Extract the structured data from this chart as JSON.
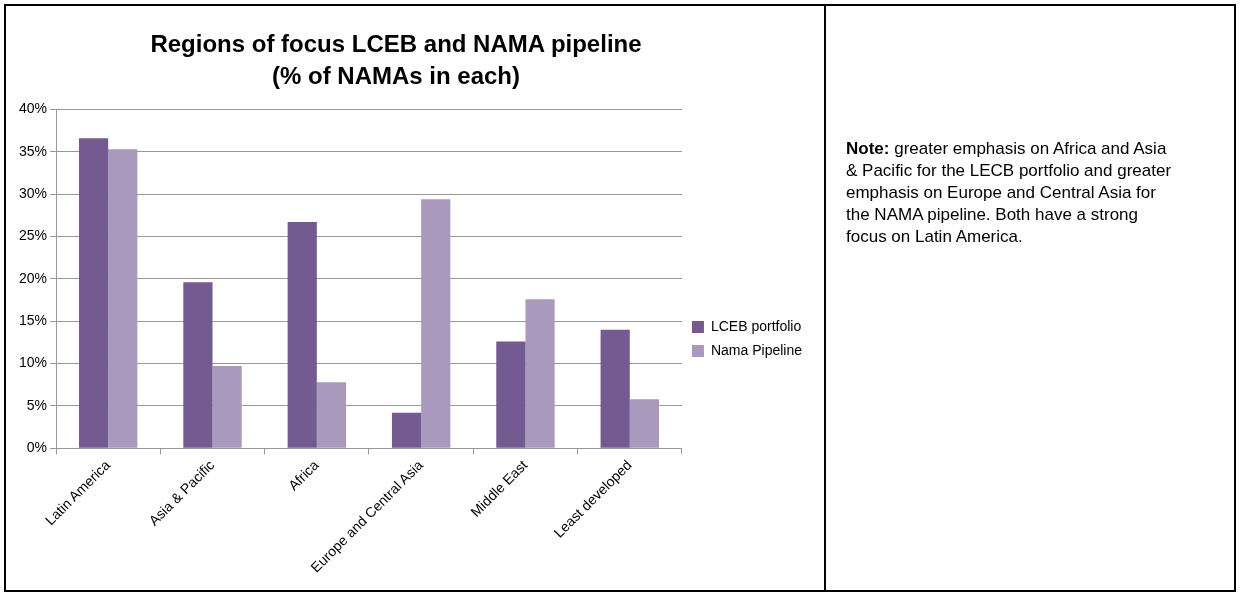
{
  "chart_data": {
    "type": "bar",
    "title": "Regions of focus LCEB and NAMA pipeline (% of NAMAs in each)",
    "categories": [
      "Latin America",
      "Asia & Pacific",
      "Africa",
      "Europe and Central Asia",
      "Middle East",
      "Least developed"
    ],
    "series": [
      {
        "name": "LCEB portfolio",
        "color": "#735a90",
        "values": [
          36.6,
          19.6,
          26.7,
          4.2,
          12.6,
          14.0
        ]
      },
      {
        "name": "Nama Pipeline",
        "color": "#a99abd",
        "values": [
          35.3,
          9.7,
          7.8,
          29.4,
          17.6,
          5.8
        ]
      }
    ],
    "ylim": [
      0,
      40
    ],
    "yticks": [
      {
        "value": 0,
        "label": "0%"
      },
      {
        "value": 5,
        "label": "5%"
      },
      {
        "value": 10,
        "label": "10%"
      },
      {
        "value": 15,
        "label": "15%"
      },
      {
        "value": 20,
        "label": "20%"
      },
      {
        "value": 25,
        "label": "25%"
      },
      {
        "value": 30,
        "label": "30%"
      },
      {
        "value": 35,
        "label": "35%"
      },
      {
        "value": 40,
        "label": "40%"
      }
    ],
    "grid": "y",
    "legend": "right",
    "annotations": [
      "Note: greater emphasis on Africa and Asia & Pacific for the LECB portfolio and greater emphasis on Europe and Central Asia for the NAMA pipeline. Both have a strong focus on Latin America."
    ]
  }
}
